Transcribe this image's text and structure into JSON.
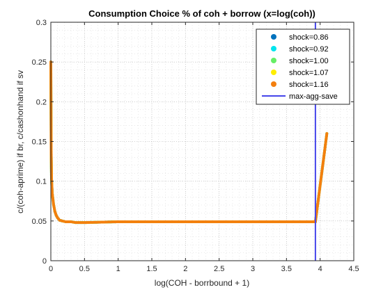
{
  "chart_data": {
    "type": "scatter",
    "title": "Consumption Choice % of coh + borrow (x=log(coh))",
    "xlabel": "log(COH - borrbound + 1)",
    "ylabel": "c/(coh-aprime) if br, c/cashonhand if sv",
    "xlim": [
      0,
      4.5
    ],
    "ylim": [
      0,
      0.3
    ],
    "x_ticks": [
      0,
      0.5,
      1,
      1.5,
      2,
      2.5,
      3,
      3.5,
      4,
      4.5
    ],
    "x_tick_labels": [
      "0",
      "0.5",
      "1",
      "1.5",
      "2",
      "2.5",
      "3",
      "3.5",
      "4",
      "4.5"
    ],
    "y_ticks": [
      0,
      0.05,
      0.1,
      0.15,
      0.2,
      0.25,
      0.3
    ],
    "y_tick_labels": [
      "0",
      "0.05",
      "0.1",
      "0.15",
      "0.2",
      "0.25",
      "0.3"
    ],
    "grid": "dotted major and minor",
    "legend_position": "top-right",
    "series": [
      {
        "name": "shock=0.86",
        "color": "#0072bd",
        "points": [
          [
            0,
            0.25
          ],
          [
            0.005,
            0.14
          ],
          [
            0.01,
            0.104
          ],
          [
            0.02,
            0.085
          ],
          [
            0.04,
            0.071
          ],
          [
            0.06,
            0.062
          ],
          [
            0.08,
            0.057
          ],
          [
            0.1,
            0.054
          ],
          [
            0.13,
            0.051
          ],
          [
            0.17,
            0.05
          ],
          [
            0.22,
            0.049
          ],
          [
            0.3,
            0.049
          ],
          [
            0.37,
            0.048
          ],
          [
            0.5,
            0.048
          ],
          [
            1.0,
            0.049
          ],
          [
            2.0,
            0.049
          ],
          [
            3.0,
            0.049
          ],
          [
            3.93,
            0.049
          ],
          [
            4.1,
            0.16
          ]
        ]
      },
      {
        "name": "shock=0.92",
        "color": "#00e5ee",
        "points": [
          [
            0,
            0.25
          ],
          [
            0.005,
            0.14
          ],
          [
            0.01,
            0.104
          ],
          [
            0.02,
            0.085
          ],
          [
            0.04,
            0.071
          ],
          [
            0.06,
            0.062
          ],
          [
            0.08,
            0.057
          ],
          [
            0.1,
            0.054
          ],
          [
            0.13,
            0.051
          ],
          [
            0.17,
            0.05
          ],
          [
            0.22,
            0.049
          ],
          [
            0.3,
            0.049
          ],
          [
            0.37,
            0.048
          ],
          [
            0.5,
            0.048
          ],
          [
            1.0,
            0.049
          ],
          [
            2.0,
            0.049
          ],
          [
            3.0,
            0.049
          ],
          [
            3.93,
            0.049
          ],
          [
            4.1,
            0.16
          ]
        ]
      },
      {
        "name": "shock=1.00",
        "color": "#66ee66",
        "points": [
          [
            0,
            0.25
          ],
          [
            0.005,
            0.14
          ],
          [
            0.01,
            0.104
          ],
          [
            0.02,
            0.085
          ],
          [
            0.04,
            0.071
          ],
          [
            0.06,
            0.062
          ],
          [
            0.08,
            0.057
          ],
          [
            0.1,
            0.054
          ],
          [
            0.13,
            0.051
          ],
          [
            0.17,
            0.05
          ],
          [
            0.22,
            0.049
          ],
          [
            0.3,
            0.049
          ],
          [
            0.37,
            0.048
          ],
          [
            0.5,
            0.048
          ],
          [
            1.0,
            0.049
          ],
          [
            2.0,
            0.049
          ],
          [
            3.0,
            0.049
          ],
          [
            3.93,
            0.049
          ],
          [
            4.1,
            0.16
          ]
        ]
      },
      {
        "name": "shock=1.07",
        "color": "#ffee00",
        "points": [
          [
            0,
            0.25
          ],
          [
            0.005,
            0.14
          ],
          [
            0.01,
            0.104
          ],
          [
            0.02,
            0.085
          ],
          [
            0.04,
            0.071
          ],
          [
            0.06,
            0.062
          ],
          [
            0.08,
            0.057
          ],
          [
            0.1,
            0.054
          ],
          [
            0.13,
            0.051
          ],
          [
            0.17,
            0.05
          ],
          [
            0.22,
            0.049
          ],
          [
            0.3,
            0.049
          ],
          [
            0.37,
            0.048
          ],
          [
            0.5,
            0.048
          ],
          [
            1.0,
            0.049
          ],
          [
            2.0,
            0.049
          ],
          [
            3.0,
            0.049
          ],
          [
            3.93,
            0.049
          ],
          [
            4.1,
            0.16
          ]
        ]
      },
      {
        "name": "shock=1.16",
        "color": "#f37f0f",
        "points": [
          [
            0,
            0.25
          ],
          [
            0.005,
            0.14
          ],
          [
            0.01,
            0.104
          ],
          [
            0.02,
            0.085
          ],
          [
            0.04,
            0.071
          ],
          [
            0.06,
            0.062
          ],
          [
            0.08,
            0.057
          ],
          [
            0.1,
            0.054
          ],
          [
            0.13,
            0.051
          ],
          [
            0.17,
            0.05
          ],
          [
            0.22,
            0.049
          ],
          [
            0.3,
            0.049
          ],
          [
            0.37,
            0.048
          ],
          [
            0.5,
            0.048
          ],
          [
            1.0,
            0.049
          ],
          [
            2.0,
            0.049
          ],
          [
            3.0,
            0.049
          ],
          [
            3.93,
            0.049
          ],
          [
            4.1,
            0.16
          ]
        ]
      }
    ],
    "vertical_line": {
      "name": "max-agg-save",
      "x": 3.93,
      "color": "#4545ea"
    }
  }
}
